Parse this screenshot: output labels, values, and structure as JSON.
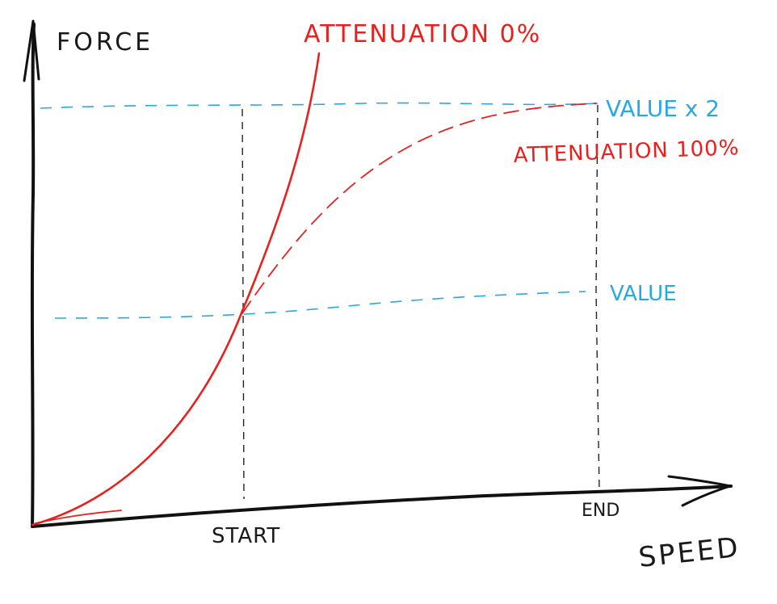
{
  "labels": {
    "y_axis": "FORCE",
    "x_axis": "SPEED",
    "start": "START",
    "end": "END",
    "curve_0": "ATTENUATION 0%",
    "curve_100": "ATTENUATION 100%",
    "value": "VALUE",
    "value_x2": "VALUE x 2"
  },
  "colors": {
    "axis": "#111111",
    "guide_black": "#222222",
    "curve": "#e8201e",
    "guide_blue": "#29a8e6"
  }
}
